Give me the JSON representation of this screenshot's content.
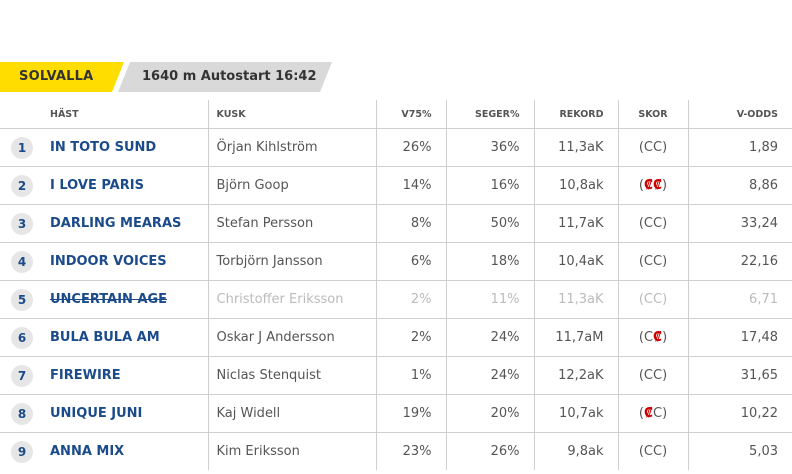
{
  "header": {
    "track": "SOLVALLA",
    "race": "1640 m Autostart 16:42"
  },
  "columns": [
    "HÄST",
    "KUSK",
    "V75%",
    "SEGER%",
    "REKORD",
    "SKOR",
    "V-ODDS"
  ],
  "rows": [
    {
      "num": "1",
      "horse": "IN TOTO SUND",
      "driver": "Örjan Kihlström",
      "v75": "26%",
      "seger": "36%",
      "rekord": "11,3aK",
      "skor": [
        "(",
        "C",
        "C",
        ")"
      ],
      "odds": "1,89"
    },
    {
      "num": "2",
      "horse": "I LOVE PARIS",
      "driver": "Björn Goop",
      "v75": "14%",
      "seger": "16%",
      "rekord": "10,8ak",
      "skor": [
        "(",
        "₡",
        "₡",
        ")"
      ],
      "odds": "8,86"
    },
    {
      "num": "3",
      "horse": "DARLING MEARAS",
      "driver": "Stefan Persson",
      "v75": "8%",
      "seger": "50%",
      "rekord": "11,7aK",
      "skor": [
        "(",
        "C",
        "C",
        ")"
      ],
      "odds": "33,24"
    },
    {
      "num": "4",
      "horse": "INDOOR VOICES",
      "driver": "Torbjörn Jansson",
      "v75": "6%",
      "seger": "18%",
      "rekord": "10,4aK",
      "skor": [
        "(",
        "C",
        "C",
        ")"
      ],
      "odds": "22,16"
    },
    {
      "num": "5",
      "horse": "UNCERTAIN AGE",
      "driver": "Christoffer Eriksson",
      "v75": "2%",
      "seger": "11%",
      "rekord": "11,3aK",
      "skor": [
        "(",
        "C",
        "C",
        ")"
      ],
      "odds": "6,71"
    },
    {
      "num": "6",
      "horse": "BULA BULA AM",
      "driver": "Oskar J Andersson",
      "v75": "2%",
      "seger": "24%",
      "rekord": "11,7aM",
      "skor": [
        "(",
        "C",
        "₡",
        ")"
      ],
      "odds": "17,48"
    },
    {
      "num": "7",
      "horse": "FIREWIRE",
      "driver": "Niclas Stenquist",
      "v75": "1%",
      "seger": "24%",
      "rekord": "12,2aK",
      "skor": [
        "(",
        "C",
        "C",
        ")"
      ],
      "odds": "31,65"
    },
    {
      "num": "8",
      "horse": "UNIQUE JUNI",
      "driver": "Kaj Widell",
      "v75": "19%",
      "seger": "20%",
      "rekord": "10,7ak",
      "skor": [
        "(",
        "₡",
        "C",
        ")"
      ],
      "odds": "10,22"
    },
    {
      "num": "9",
      "horse": "ANNA MIX",
      "driver": "Kim Eriksson",
      "v75": "23%",
      "seger": "26%",
      "rekord": "9,8ak",
      "skor": [
        "(",
        "C",
        "C",
        ")"
      ],
      "odds": "5,03"
    }
  ],
  "scratched_row": 4
}
